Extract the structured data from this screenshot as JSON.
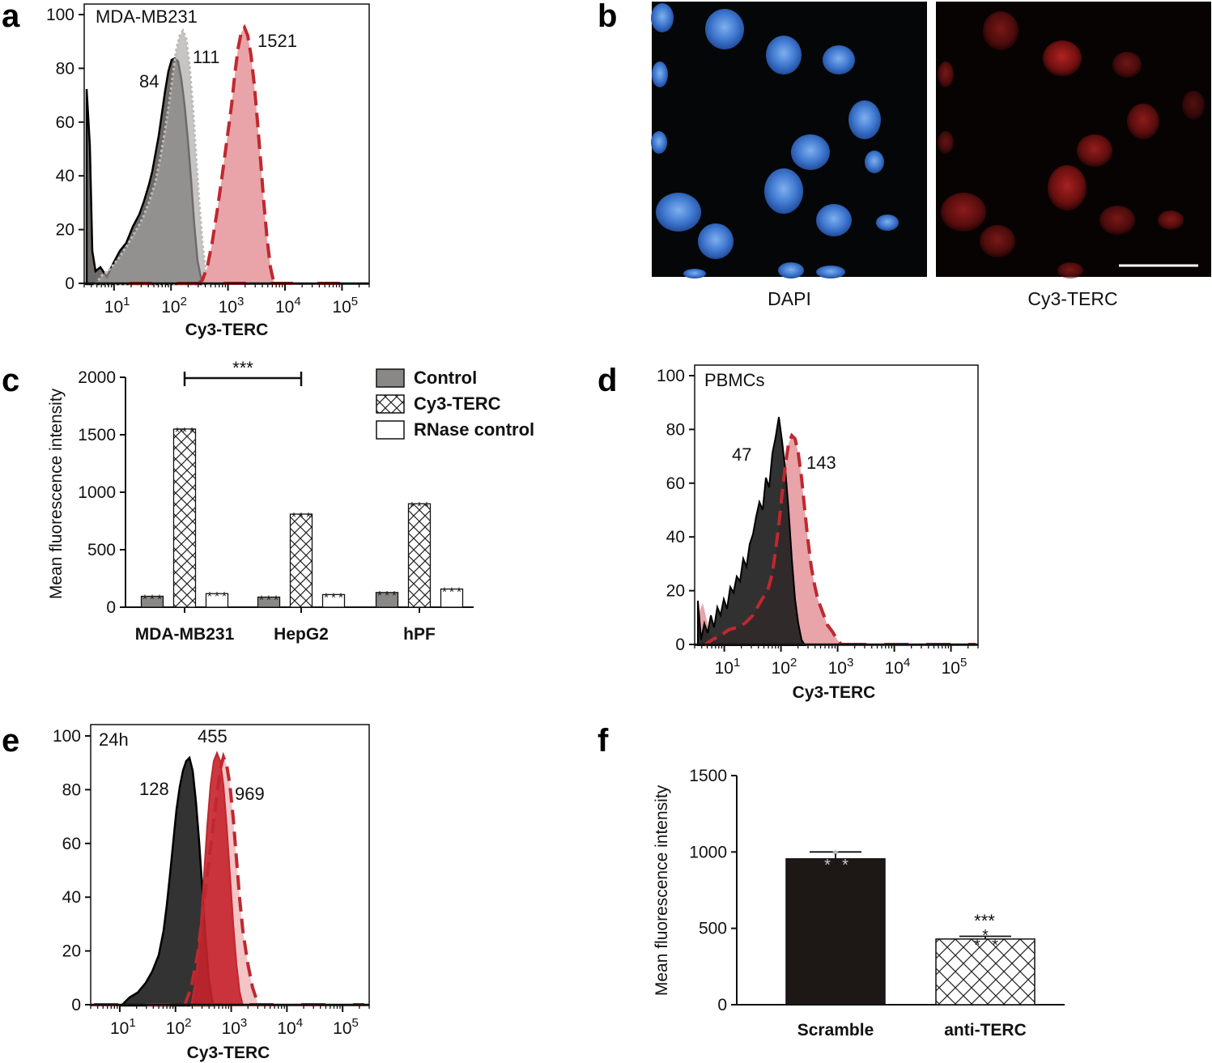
{
  "panels": {
    "a": "a",
    "b": "b",
    "c": "c",
    "d": "d",
    "e": "e",
    "f": "f"
  },
  "colors": {
    "control_grey": "#6d6a67",
    "red_line": "#c0282f",
    "red_fill": "#e8a4a8",
    "dark_fill": "#2a2a2a",
    "black_bar": "#1d1816"
  },
  "chart_data": [
    {
      "id": "a",
      "type": "area",
      "title": "MDA-MB231",
      "xlabel": "Cy3-TERC",
      "x_ticks": [
        "10",
        "10",
        "10",
        "10",
        "10"
      ],
      "x_tick_exp": [
        "1",
        "2",
        "3",
        "4",
        "5"
      ],
      "xscale": "log",
      "xlim": [
        3,
        300000
      ],
      "y_ticks": [
        "0",
        "20",
        "40",
        "60",
        "80",
        "100"
      ],
      "ylim": [
        0,
        100
      ],
      "series": [
        {
          "name": "84",
          "peak_x": 84,
          "style": "black solid",
          "fill": "grey"
        },
        {
          "name": "111",
          "peak_x": 111,
          "style": "grey dotted",
          "fill": "light grey"
        },
        {
          "name": "1521",
          "peak_x": 1521,
          "style": "red dashed",
          "fill": "pink"
        }
      ],
      "annotations": [
        "84",
        "111",
        "1521"
      ]
    },
    {
      "id": "c",
      "type": "bar",
      "ylabel": "Mean fluorescence intensity",
      "categories": [
        "MDA-MB231",
        "HepG2",
        "hPF"
      ],
      "y_ticks": [
        "0",
        "500",
        "1000",
        "1500",
        "2000"
      ],
      "ylim": [
        0,
        2000
      ],
      "series": [
        {
          "name": "Control",
          "values": [
            95,
            88,
            128
          ]
        },
        {
          "name": "Cy3-TERC",
          "values": [
            1550,
            810,
            900
          ]
        },
        {
          "name": "RNase control",
          "values": [
            118,
            110,
            158
          ]
        }
      ],
      "significance": "***"
    },
    {
      "id": "d",
      "type": "area",
      "title": "PBMCs",
      "xlabel": "Cy3-TERC",
      "x_ticks": [
        "10",
        "10",
        "10",
        "10",
        "10"
      ],
      "x_tick_exp": [
        "1",
        "2",
        "3",
        "4",
        "5"
      ],
      "xscale": "log",
      "xlim": [
        3,
        300000
      ],
      "y_ticks": [
        "0",
        "20",
        "40",
        "60",
        "80",
        "100"
      ],
      "ylim": [
        0,
        100
      ],
      "series": [
        {
          "name": "47",
          "peak_x": 70,
          "style": "black solid",
          "fill": "dark"
        },
        {
          "name": "143",
          "peak_x": 150,
          "style": "red dashed",
          "fill": "pink"
        }
      ],
      "annotations": [
        "47",
        "143"
      ]
    },
    {
      "id": "e",
      "type": "area",
      "title": "24h",
      "xlabel": "Cy3-TERC",
      "x_ticks": [
        "10",
        "10",
        "10",
        "10",
        "10"
      ],
      "x_tick_exp": [
        "1",
        "2",
        "3",
        "4",
        "5"
      ],
      "xscale": "log",
      "xlim": [
        3,
        300000
      ],
      "y_ticks": [
        "0",
        "20",
        "40",
        "60",
        "80",
        "100"
      ],
      "ylim": [
        0,
        100
      ],
      "series": [
        {
          "name": "128",
          "peak_x": 160,
          "style": "black solid",
          "fill": "dark"
        },
        {
          "name": "455",
          "peak_x": 480,
          "style": "red solid",
          "fill": "red"
        },
        {
          "name": "969",
          "peak_x": 620,
          "style": "red dashed",
          "fill": "light pink"
        }
      ],
      "annotations": [
        "455",
        "128",
        "969"
      ]
    },
    {
      "id": "f",
      "type": "bar",
      "ylabel": "Mean fluorescence intensity",
      "categories": [
        "Scramble",
        "anti-TERC"
      ],
      "values": [
        955,
        430
      ],
      "errors": [
        45,
        18
      ],
      "y_ticks": [
        "0",
        "500",
        "1000",
        "1500"
      ],
      "ylim": [
        0,
        1500
      ],
      "significance": "***"
    }
  ],
  "micrographs": {
    "left_label": "DAPI",
    "right_label": "Cy3-TERC"
  }
}
